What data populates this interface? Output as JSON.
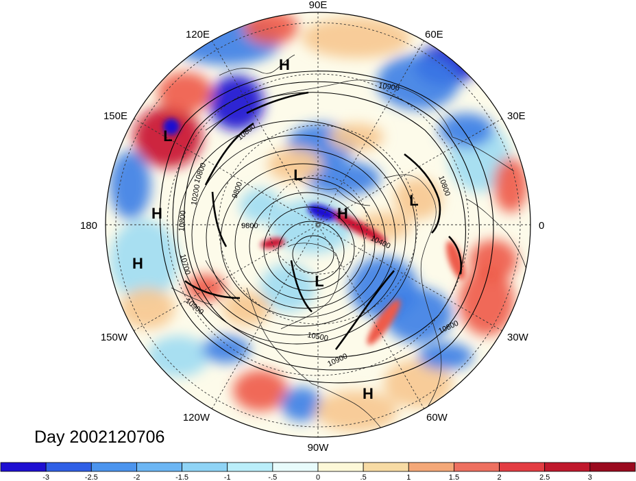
{
  "map": {
    "projection": "north polar stereographic",
    "longitude_labels": [
      {
        "text": "90E"
      },
      {
        "text": "60E"
      },
      {
        "text": "30E"
      },
      {
        "text": "0"
      },
      {
        "text": "30W"
      },
      {
        "text": "60W"
      },
      {
        "text": "90W"
      },
      {
        "text": "120W"
      },
      {
        "text": "150W"
      },
      {
        "text": "180"
      },
      {
        "text": "150E"
      },
      {
        "text": "120E"
      }
    ],
    "pressure_centers": [
      {
        "text": "H",
        "name": "high-center"
      },
      {
        "text": "L",
        "name": "low-center"
      },
      {
        "text": "L",
        "name": "low-center"
      },
      {
        "text": "H",
        "name": "high-center"
      },
      {
        "text": "H",
        "name": "high-center"
      },
      {
        "text": "L",
        "name": "low-center"
      },
      {
        "text": "H",
        "name": "high-center"
      },
      {
        "text": "L",
        "name": "low-center"
      },
      {
        "text": "H",
        "name": "high-center"
      }
    ],
    "contour_labels": [
      {
        "text": "10900"
      },
      {
        "text": "10800"
      },
      {
        "text": "10800"
      },
      {
        "text": "9800"
      },
      {
        "text": "10800"
      },
      {
        "text": "9800"
      },
      {
        "text": "10400"
      },
      {
        "text": "10800"
      },
      {
        "text": "10700"
      },
      {
        "text": "10900"
      },
      {
        "text": "10500"
      },
      {
        "text": "10900"
      },
      {
        "text": "10800"
      },
      {
        "text": "10200"
      }
    ],
    "day_label": "Day 2002120706",
    "colors": {
      "neg_strong": "#1a10d0",
      "neg_mid": "#3c7ee6",
      "neg_light": "#9fdcf2",
      "neutral": "#fdfbea",
      "pos_light": "#f7c890",
      "pos_mid": "#ee5a48",
      "pos_strong": "#c8102e"
    }
  },
  "colorbar": {
    "tick_labels": [
      "-3",
      "-2.5",
      "-2",
      "-1.5",
      "-1",
      "-.5",
      "0",
      ".5",
      "1",
      "1.5",
      "2",
      "2.5",
      "3"
    ],
    "colors": [
      "#1e0fd2",
      "#2f5fe6",
      "#4b94ee",
      "#6cb6f4",
      "#8fd4f6",
      "#baeefa",
      "#e8fbfb",
      "#fdf8d8",
      "#f7dba4",
      "#f4a878",
      "#ee7060",
      "#e33c42",
      "#c0182c",
      "#9a0a1e"
    ]
  }
}
